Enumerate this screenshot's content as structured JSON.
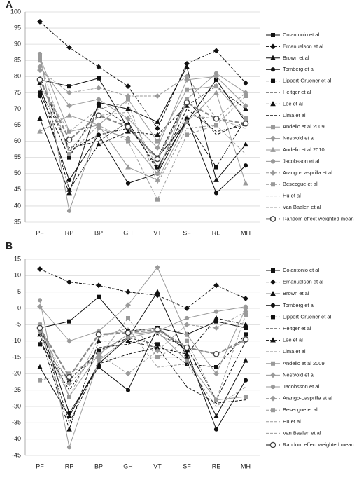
{
  "chart_data": [
    {
      "type": "line",
      "title": "A",
      "grid": true,
      "categories": [
        "PF",
        "RP",
        "BP",
        "GH",
        "VT",
        "SF",
        "RE",
        "MH"
      ],
      "ylim": [
        35,
        100
      ],
      "yticks": [
        35,
        40,
        45,
        50,
        55,
        60,
        65,
        70,
        75,
        80,
        85,
        90,
        95,
        100
      ],
      "series": [
        {
          "name": "Colantonio et al",
          "color": "#111111",
          "dash": false,
          "marker": "square",
          "values": [
            79,
            77,
            79.5,
            64,
            55,
            66,
            79,
            66
          ]
        },
        {
          "name": "Emanuelson et al",
          "color": "#111111",
          "dash": true,
          "marker": "diamond",
          "values": [
            97,
            89,
            83,
            77,
            64,
            84,
            88,
            78
          ]
        },
        {
          "name": "Brown et al",
          "color": "#111111",
          "dash": false,
          "marker": "triangle",
          "values": [
            67,
            44,
            72,
            70,
            66,
            83,
            48,
            59
          ]
        },
        {
          "name": "Tomberg et al",
          "color": "#111111",
          "dash": false,
          "marker": "circle",
          "values": [
            74,
            48,
            62,
            47,
            50,
            67,
            44,
            52.5
          ]
        },
        {
          "name": "Lippert-Gruener et al",
          "color": "#111111",
          "dash": true,
          "marker": "square",
          "values": [
            75,
            55,
            71,
            65,
            52,
            66,
            52,
            67
          ]
        },
        {
          "name": "Heitger et al",
          "color": "#111111",
          "dash": true,
          "marker": "none",
          "values": [
            76,
            58,
            60,
            66,
            51,
            70,
            63,
            65
          ]
        },
        {
          "name": "Lee et al",
          "color": "#111111",
          "dash": true,
          "marker": "triangle",
          "values": [
            78,
            45,
            59,
            63,
            62,
            71,
            77,
            70
          ]
        },
        {
          "name": "Lima et al",
          "color": "#111111",
          "dash": true,
          "marker": "none",
          "values": [
            80,
            57,
            62,
            64,
            55,
            73,
            62,
            66
          ]
        },
        {
          "name": "Andelic et al 2009",
          "color": "#9a9a9a",
          "dash": false,
          "marker": "square",
          "values": [
            86,
            63,
            65,
            73,
            60,
            76,
            77,
            67
          ]
        },
        {
          "name": "Nestvold et al",
          "color": "#9a9a9a",
          "dash": false,
          "marker": "diamond",
          "values": [
            83,
            71,
            73,
            67,
            58,
            79,
            80,
            71
          ]
        },
        {
          "name": "Andelic et al 2010",
          "color": "#9a9a9a",
          "dash": false,
          "marker": "triangle",
          "values": [
            63,
            68,
            65,
            52,
            48,
            66,
            75,
            47
          ]
        },
        {
          "name": "Jacobsson et al",
          "color": "#9a9a9a",
          "dash": false,
          "marker": "circle",
          "values": [
            87,
            38.5,
            64,
            61,
            50,
            73,
            81,
            75
          ]
        },
        {
          "name": "Arango-Lasprilla et al",
          "color": "#9a9a9a",
          "dash": true,
          "marker": "diamond",
          "values": [
            82,
            75,
            76.5,
            74,
            74,
            80,
            67,
            75
          ]
        },
        {
          "name": "Besecgue et al",
          "color": "#9a9a9a",
          "dash": true,
          "marker": "square",
          "values": [
            85,
            56,
            65,
            60,
            42,
            62,
            65,
            74
          ]
        },
        {
          "name": "Hu et al",
          "color": "#9a9a9a",
          "dash": true,
          "marker": "none",
          "values": [
            77,
            63,
            70,
            72,
            47,
            64,
            65,
            56
          ]
        },
        {
          "name": "Van Baalen et al",
          "color": "#9a9a9a",
          "dash": true,
          "marker": "none",
          "values": [
            79,
            57,
            68,
            69,
            52,
            68,
            67,
            64
          ]
        },
        {
          "name": "Random effect weighted mean",
          "color": "#888888",
          "dash": true,
          "marker": "ring",
          "values": [
            79,
            60.5,
            68,
            64.5,
            54.5,
            72,
            67,
            65.5
          ]
        }
      ]
    },
    {
      "type": "line",
      "title": "B",
      "grid": true,
      "categories": [
        "PF",
        "RP",
        "BP",
        "GH",
        "VT",
        "SF",
        "RE",
        "MH"
      ],
      "ylim": [
        -45,
        15
      ],
      "yticks": [
        -45,
        -40,
        -35,
        -30,
        -25,
        -20,
        -15,
        -10,
        -5,
        0,
        5,
        10,
        15
      ],
      "series": [
        {
          "name": "Colantonio et al",
          "color": "#111111",
          "dash": false,
          "marker": "square",
          "values": [
            -6,
            -4,
            3.5,
            -7,
            -6,
            -8,
            -4,
            -6
          ]
        },
        {
          "name": "Emanuelson et al",
          "color": "#111111",
          "dash": true,
          "marker": "diamond",
          "values": [
            12,
            8,
            7,
            5,
            4,
            0,
            7,
            3
          ]
        },
        {
          "name": "Brown et al",
          "color": "#111111",
          "dash": false,
          "marker": "triangle",
          "values": [
            -18,
            -33,
            -17,
            -9,
            5,
            -15,
            -33,
            -16
          ]
        },
        {
          "name": "Tomberg et al",
          "color": "#111111",
          "dash": false,
          "marker": "circle",
          "values": [
            -5,
            -32,
            -18,
            -25,
            -6,
            -13,
            -37,
            -22
          ]
        },
        {
          "name": "Lippert-Gruener et al",
          "color": "#111111",
          "dash": true,
          "marker": "square",
          "values": [
            -11,
            -22,
            -13,
            -9,
            -11,
            -17,
            -18,
            -8
          ]
        },
        {
          "name": "Heitger et al",
          "color": "#111111",
          "dash": true,
          "marker": "none",
          "values": [
            -10,
            -25,
            -12,
            -11,
            -8,
            -12,
            -28,
            -10
          ]
        },
        {
          "name": "Lee et al",
          "color": "#111111",
          "dash": true,
          "marker": "triangle",
          "values": [
            -8,
            -37,
            -10,
            -10,
            -12,
            -14,
            -3,
            -5
          ]
        },
        {
          "name": "Lima et al",
          "color": "#111111",
          "dash": true,
          "marker": "none",
          "values": [
            -6,
            -35,
            -17,
            -14,
            -12,
            -24,
            -29,
            -28
          ]
        },
        {
          "name": "Andelic et al 2009",
          "color": "#9a9a9a",
          "dash": false,
          "marker": "square",
          "values": [
            -5,
            -27,
            -14,
            -8,
            -7,
            -16,
            -28,
            -27
          ]
        },
        {
          "name": "Nestvold et al",
          "color": "#9a9a9a",
          "dash": false,
          "marker": "diamond",
          "values": [
            0.5,
            -10,
            -7,
            1,
            12.5,
            -8,
            -20,
            0
          ]
        },
        {
          "name": "Jacobsson et al",
          "color": "#9a9a9a",
          "dash": false,
          "marker": "circle",
          "values": [
            2.5,
            -42.5,
            -16,
            -9,
            -7,
            -3,
            -1,
            0.5
          ]
        },
        {
          "name": "Arango-Lasprilla et al",
          "color": "#9a9a9a",
          "dash": true,
          "marker": "diamond",
          "values": [
            -7,
            -23,
            -14,
            -20,
            -13,
            -5,
            -6,
            -1
          ]
        },
        {
          "name": "Besecgue et al",
          "color": "#9a9a9a",
          "dash": true,
          "marker": "square",
          "values": [
            -22,
            -20,
            -15,
            -3,
            -15,
            -10,
            -28,
            -2
          ]
        },
        {
          "name": "Hu et al",
          "color": "#9a9a9a",
          "dash": true,
          "marker": "none",
          "values": [
            -8,
            -27,
            -9,
            -6,
            -18,
            -17,
            -30,
            -24
          ]
        },
        {
          "name": "Van Baalen et al",
          "color": "#9a9a9a",
          "dash": true,
          "marker": "none",
          "values": [
            -6,
            -21,
            -8,
            -7,
            -6,
            -12,
            -14,
            -10
          ]
        },
        {
          "name": "Random effect weighted mean",
          "color": "#888888",
          "dash": true,
          "marker": "ring",
          "values": [
            -6,
            -21,
            -8,
            -7.5,
            -6.5,
            -12,
            -14,
            -9.5
          ]
        }
      ]
    }
  ]
}
